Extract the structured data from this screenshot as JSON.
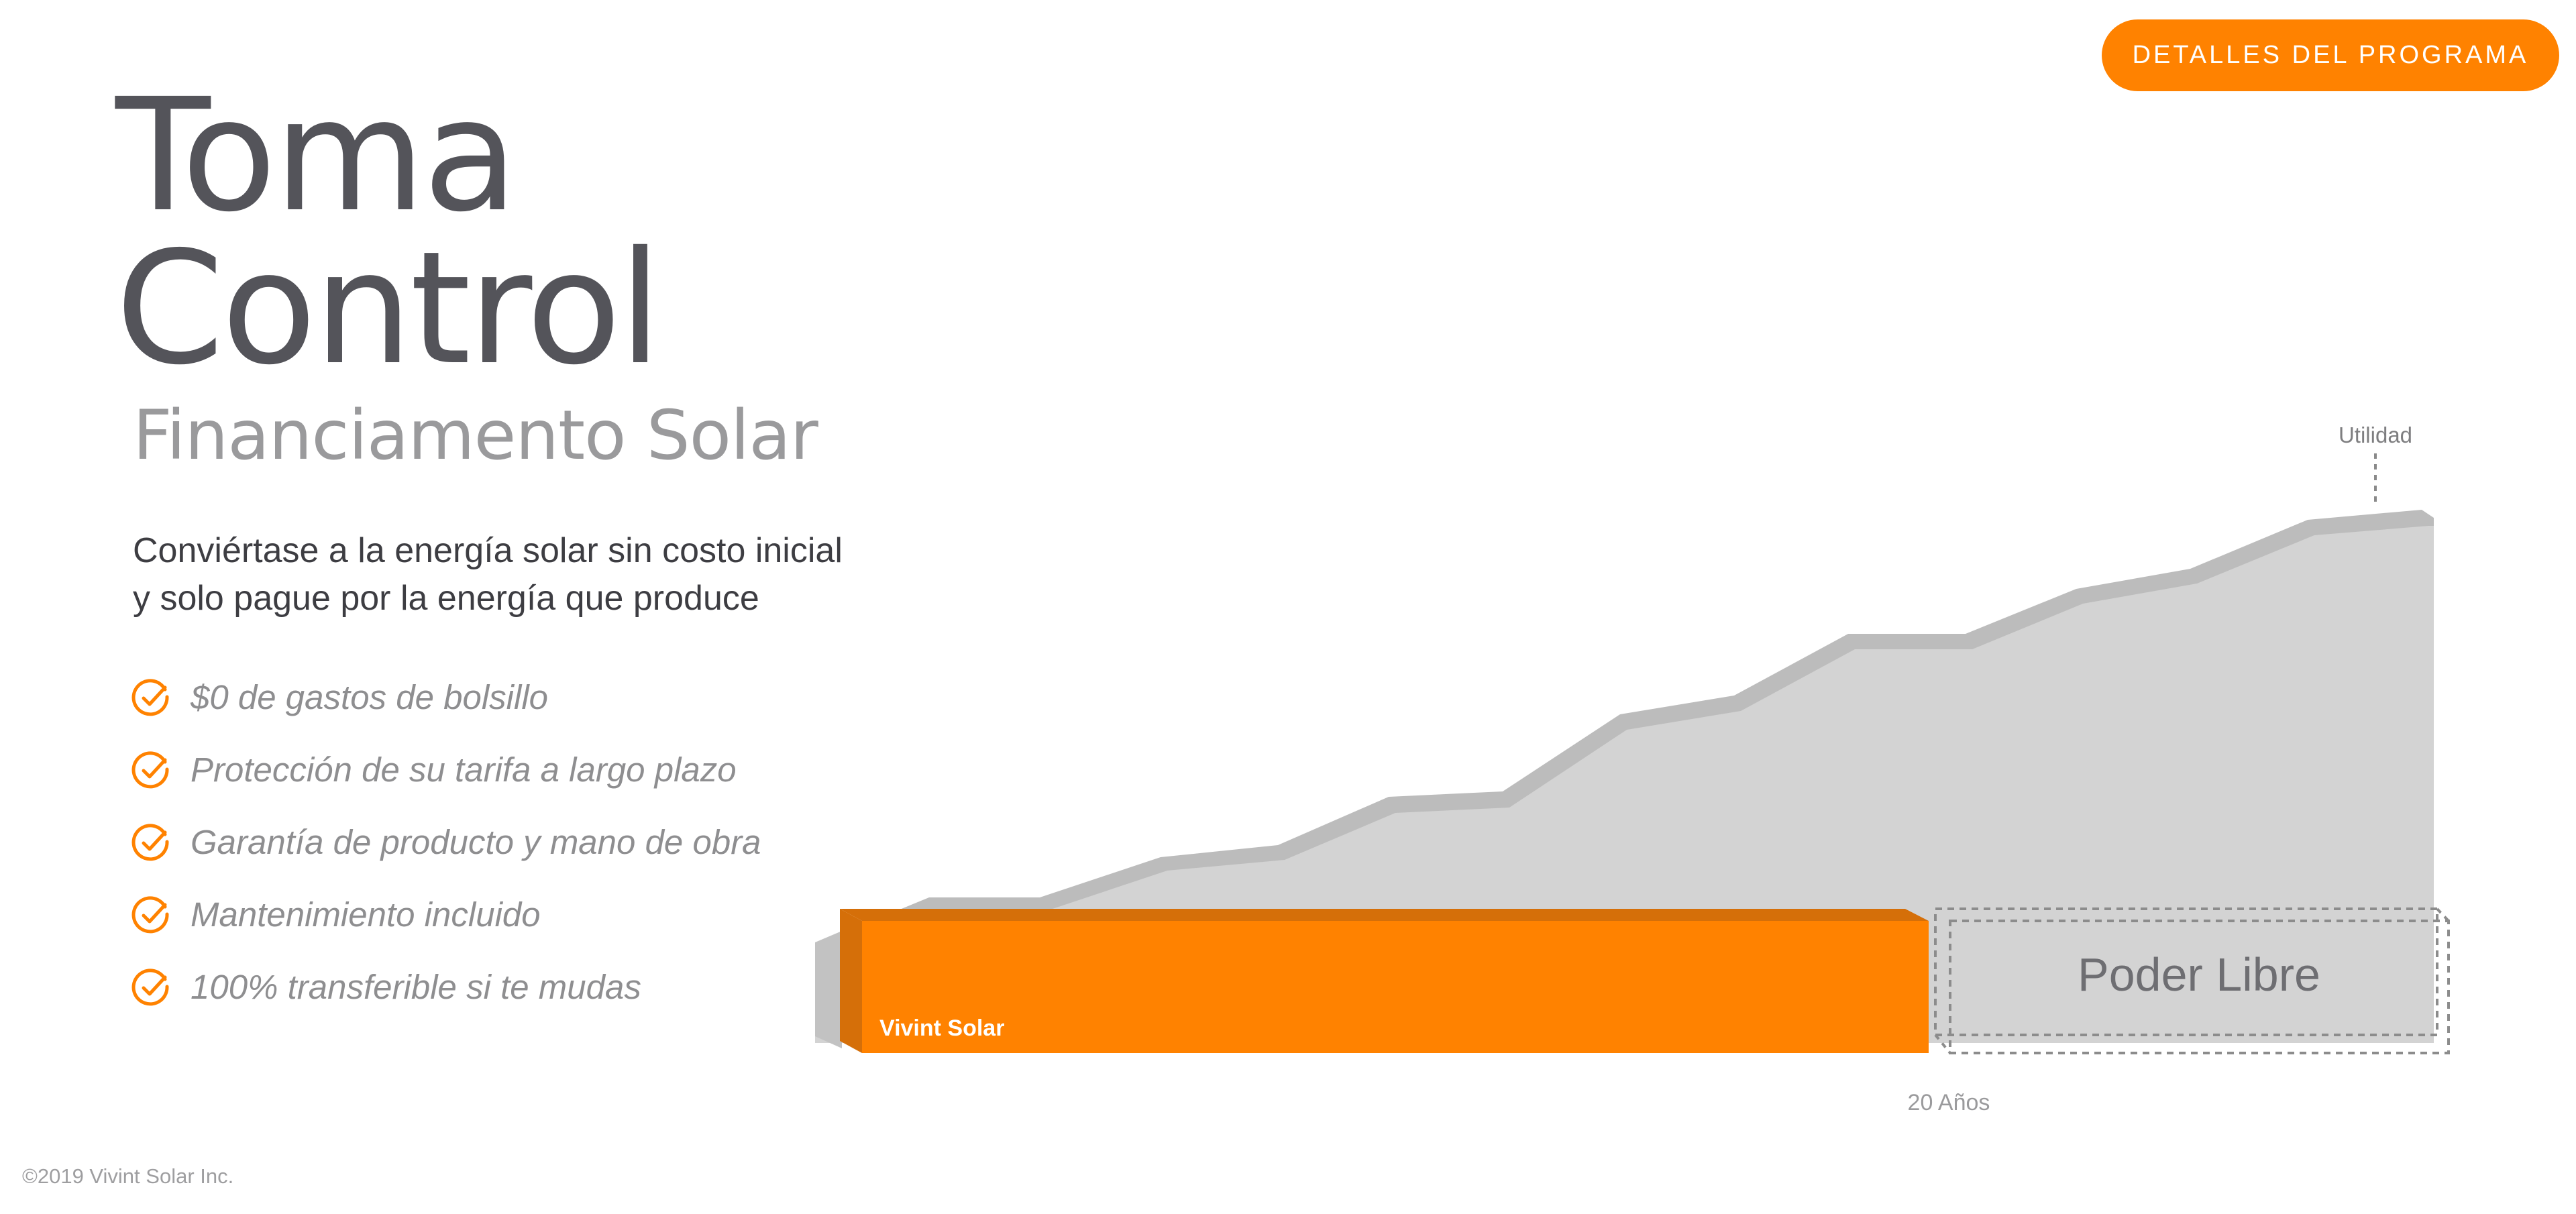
{
  "header": {
    "program_button_label": "DETALLES DEL PROGRAMA"
  },
  "hero": {
    "title_line1": "Toma",
    "title_line2": "Control",
    "subtitle": "Financiamento Solar",
    "description_line1": "Conviértase a la energía solar sin costo inicial",
    "description_line2": "y solo pague por la energía que produce"
  },
  "benefits": [
    {
      "label": "$0 de gastos de bolsillo",
      "icon": "check-circle-icon"
    },
    {
      "label": "Protección de su tarifa a largo plazo",
      "icon": "check-circle-icon"
    },
    {
      "label": "Garantía de producto y mano de obra",
      "icon": "check-circle-icon"
    },
    {
      "label": "Mantenimiento incluido",
      "icon": "check-circle-icon"
    },
    {
      "label": "100% transferible si te mudas",
      "icon": "check-circle-icon"
    }
  ],
  "graphic": {
    "utility_label": "Utilidad",
    "vivint_label": "Vivint Solar",
    "free_power_label": "Poder Libre",
    "years_label": "20 Años"
  },
  "footer": {
    "copyright": "©2019 Vivint Solar Inc."
  },
  "colors": {
    "accent": "#ff8200",
    "accent_dark": "#d56f09",
    "title_text": "#54545a",
    "muted_text": "#9a9a9c",
    "utility_area": "#d3d3d3",
    "utility_edge": "#bcbcbc"
  }
}
